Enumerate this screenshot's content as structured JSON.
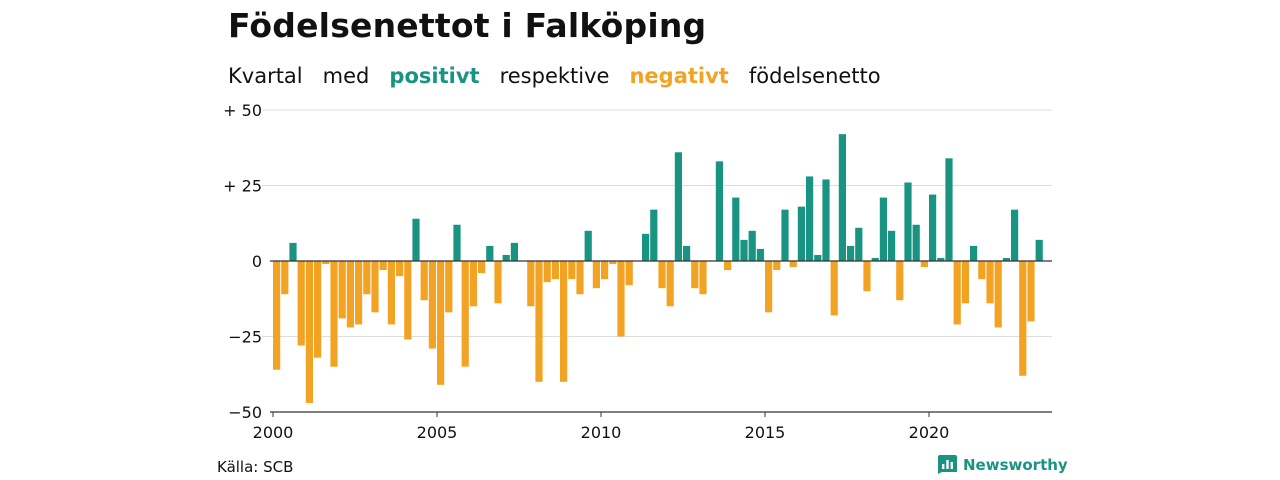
{
  "colors": {
    "positive": "#1a9482",
    "negative": "#f3a324",
    "grid": "#dddddd",
    "axis": "#333333",
    "text": "#111111"
  },
  "subtitle": {
    "w1": "Kvartal",
    "w2": "med",
    "positive_word": "positivt",
    "w3": "respektive",
    "negative_word": "negativt",
    "w4": "födelsenetto"
  },
  "source": "Källa: SCB",
  "brand": "Newsworthy",
  "chart_data": {
    "type": "bar",
    "title": "Födelsenettot i Falköping",
    "subtitle": "Kvartal med positivt respektive negativt födelsenetto",
    "start_year": 2000,
    "frequency": "quarterly",
    "x_ticks": [
      "2000",
      "2005",
      "2010",
      "2015",
      "2020"
    ],
    "y_ticks": [
      {
        "value": 50,
        "label": "+ 50"
      },
      {
        "value": 25,
        "label": "+ 25"
      },
      {
        "value": 0,
        "label": "0"
      },
      {
        "value": -25,
        "label": "−25"
      },
      {
        "value": -50,
        "label": "−50"
      }
    ],
    "ylim": [
      -50,
      50
    ],
    "grid": true,
    "values": [
      -36,
      -11,
      6,
      -28,
      -47,
      -32,
      -1,
      -35,
      -19,
      -22,
      -21,
      -11,
      -17,
      -3,
      -21,
      -5,
      -26,
      14,
      -13,
      -29,
      -41,
      -17,
      12,
      -35,
      -15,
      -4,
      5,
      -14,
      2,
      6,
      0,
      -15,
      -40,
      -7,
      -6,
      -40,
      -6,
      -11,
      10,
      -9,
      -6,
      -1,
      -25,
      -8,
      0,
      9,
      17,
      -9,
      -15,
      36,
      5,
      -9,
      -11,
      0,
      33,
      -3,
      21,
      7,
      10,
      4,
      -17,
      -3,
      17,
      -2,
      18,
      28,
      2,
      27,
      -18,
      42,
      5,
      11,
      -10,
      1,
      21,
      10,
      -13,
      26,
      12,
      -2,
      22,
      1,
      34,
      -21,
      -14,
      5,
      -6,
      -14,
      -22,
      1,
      17,
      -38,
      -20,
      7
    ]
  }
}
